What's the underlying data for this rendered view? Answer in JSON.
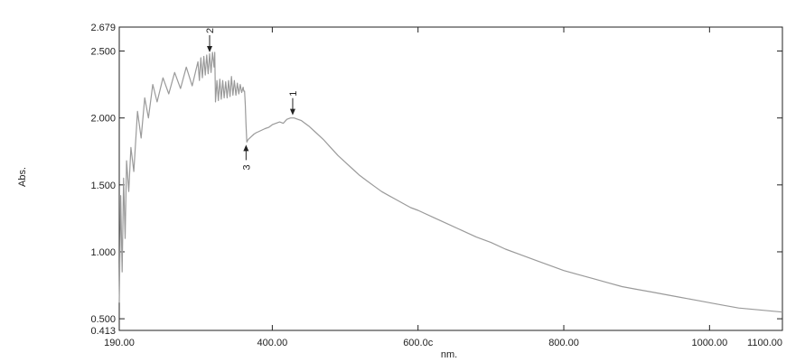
{
  "chart_data": {
    "type": "line",
    "title": "",
    "xlabel": "nm.",
    "ylabel": "Abs.",
    "xlim": [
      190,
      1100
    ],
    "ylim": [
      0.413,
      2.679
    ],
    "x_ticks": [
      {
        "value": 190,
        "label": "190.00"
      },
      {
        "value": 400,
        "label": "400.00"
      },
      {
        "value": 600,
        "label": "600.0с"
      },
      {
        "value": 800,
        "label": "800.00"
      },
      {
        "value": 1000,
        "label": "1000.00"
      },
      {
        "value": 1100,
        "label": "1100.00"
      }
    ],
    "y_ticks": [
      {
        "value": 0.413,
        "label": "0.413"
      },
      {
        "value": 0.5,
        "label": "0.500"
      },
      {
        "value": 1.0,
        "label": "1.000"
      },
      {
        "value": 1.5,
        "label": "1.500"
      },
      {
        "value": 2.0,
        "label": "2.000"
      },
      {
        "value": 2.5,
        "label": "2.500"
      },
      {
        "value": 2.679,
        "label": "2.679"
      }
    ],
    "grid": false,
    "line_color": "#9a9a9a",
    "series": [
      {
        "x": [
          190,
          192,
          194,
          196,
          198,
          200,
          203,
          206,
          210,
          215,
          220,
          225,
          230,
          236,
          242,
          250,
          258,
          266,
          274,
          282,
          290,
          298,
          300,
          302,
          304,
          306,
          308,
          310,
          312,
          314,
          316,
          318,
          320,
          321,
          322,
          324,
          326,
          328,
          330,
          332,
          334,
          336,
          338,
          340,
          342,
          344,
          346,
          348,
          350,
          352,
          354,
          356,
          358,
          360,
          361,
          362,
          363,
          364,
          365,
          367,
          369,
          371,
          373,
          375,
          378,
          382,
          386,
          390,
          395,
          400,
          405,
          410,
          415,
          420,
          425,
          430,
          435,
          440,
          450,
          460,
          470,
          480,
          490,
          500,
          510,
          520,
          530,
          540,
          550,
          560,
          570,
          580,
          590,
          600,
          620,
          640,
          660,
          680,
          700,
          720,
          740,
          760,
          780,
          800,
          820,
          840,
          860,
          880,
          900,
          920,
          940,
          960,
          980,
          1000,
          1020,
          1040,
          1060,
          1080,
          1100
        ],
        "y": [
          0.62,
          1.42,
          0.85,
          1.55,
          1.1,
          1.68,
          1.45,
          1.78,
          1.6,
          2.05,
          1.85,
          2.15,
          2.0,
          2.25,
          2.12,
          2.3,
          2.18,
          2.34,
          2.22,
          2.38,
          2.24,
          2.42,
          2.28,
          2.45,
          2.3,
          2.46,
          2.32,
          2.47,
          2.33,
          2.48,
          2.34,
          2.49,
          2.38,
          2.49,
          2.12,
          2.28,
          2.13,
          2.29,
          2.14,
          2.28,
          2.15,
          2.27,
          2.15,
          2.28,
          2.16,
          2.31,
          2.17,
          2.28,
          2.17,
          2.26,
          2.18,
          2.25,
          2.19,
          2.23,
          2.2,
          2.2,
          2.1,
          1.95,
          1.82,
          1.84,
          1.85,
          1.86,
          1.87,
          1.88,
          1.89,
          1.9,
          1.91,
          1.92,
          1.93,
          1.95,
          1.96,
          1.97,
          1.96,
          1.99,
          2.0,
          2.0,
          1.99,
          1.98,
          1.94,
          1.89,
          1.84,
          1.78,
          1.72,
          1.67,
          1.62,
          1.57,
          1.53,
          1.49,
          1.45,
          1.42,
          1.39,
          1.36,
          1.33,
          1.31,
          1.26,
          1.21,
          1.16,
          1.11,
          1.07,
          1.02,
          0.98,
          0.94,
          0.9,
          0.86,
          0.83,
          0.8,
          0.77,
          0.74,
          0.72,
          0.7,
          0.68,
          0.66,
          0.64,
          0.62,
          0.6,
          0.58,
          0.57,
          0.56,
          0.55
        ]
      }
    ],
    "annotations": [
      {
        "label": "1",
        "x": 428,
        "y": 2.0,
        "position": "above"
      },
      {
        "label": "2",
        "x": 314,
        "y": 2.47,
        "position": "above"
      },
      {
        "label": "3",
        "x": 364,
        "y": 1.82,
        "position": "below"
      }
    ]
  }
}
